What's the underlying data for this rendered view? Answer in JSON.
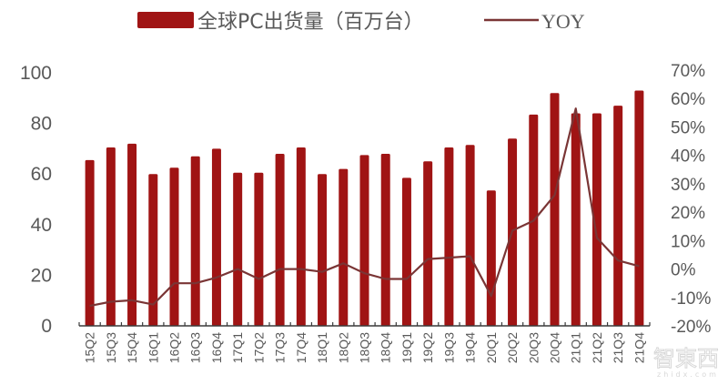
{
  "legend": {
    "bar_label": "全球PC出货量（百万台）",
    "line_label": "YOY"
  },
  "colors": {
    "bar": "#A01414",
    "line": "#7A3535",
    "text": "#595959",
    "axis": "#3a3a3a"
  },
  "watermark": {
    "text": "智東西",
    "sub": "zhidx.com"
  },
  "chart_data": {
    "type": "bar",
    "title": "",
    "xlabel": "",
    "ylabel": "",
    "categories": [
      "15Q2",
      "15Q3",
      "15Q4",
      "16Q1",
      "16Q2",
      "16Q3",
      "16Q4",
      "17Q1",
      "17Q2",
      "17Q3",
      "17Q4",
      "18Q1",
      "18Q2",
      "18Q3",
      "18Q4",
      "19Q1",
      "19Q2",
      "19Q3",
      "19Q4",
      "20Q1",
      "20Q2",
      "20Q3",
      "20Q4",
      "21Q1",
      "21Q2",
      "21Q3",
      "21Q4"
    ],
    "series": [
      {
        "name": "全球PC出货量（百万台）",
        "type": "bar",
        "axis": "left",
        "values": [
          65.5,
          70.5,
          72,
          60,
          62.5,
          67,
          70,
          60.5,
          60.5,
          68,
          70.5,
          60,
          62,
          67.5,
          68,
          58.5,
          65,
          70.5,
          71.5,
          53.5,
          74,
          83.5,
          92,
          84,
          84,
          87,
          93
        ]
      },
      {
        "name": "YOY",
        "type": "line",
        "axis": "right",
        "unit": "%",
        "values": [
          -13,
          -11.5,
          -11,
          -12.5,
          -5,
          -5,
          -3,
          0,
          -3.5,
          0,
          0,
          -1,
          2,
          -1.5,
          -3.5,
          -3.5,
          3.5,
          4,
          4.5,
          -9.5,
          13.5,
          17,
          26,
          56.5,
          11,
          3,
          1
        ]
      }
    ],
    "left_axis": {
      "ylim": [
        0,
        100
      ],
      "ticks": [
        "0",
        "20",
        "40",
        "60",
        "80",
        "100"
      ]
    },
    "right_axis": {
      "ylim": [
        -20,
        70
      ],
      "ticks": [
        "-20%",
        "-10%",
        "0%",
        "10%",
        "20%",
        "30%",
        "40%",
        "50%",
        "60%",
        "70%"
      ]
    },
    "grid": false,
    "legend_position": "top"
  }
}
